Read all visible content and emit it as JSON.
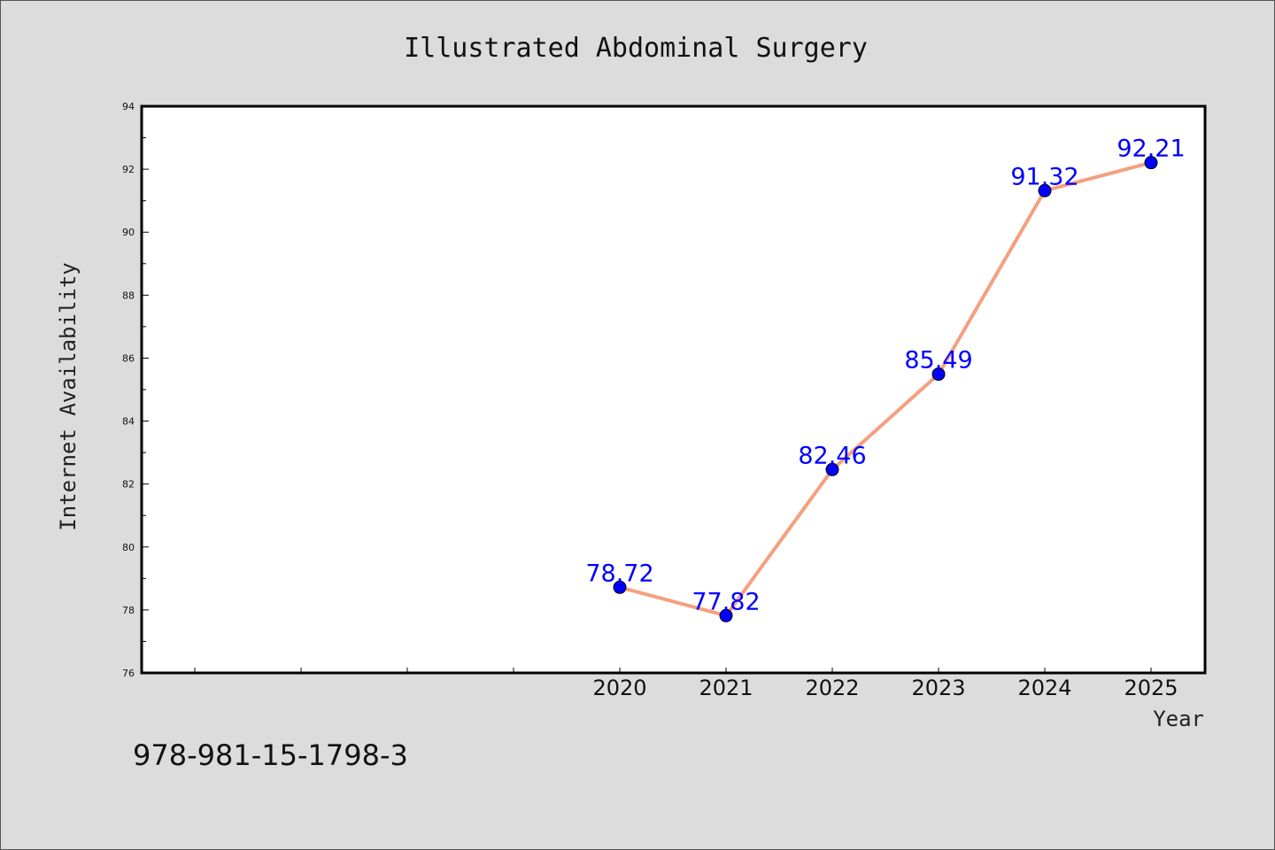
{
  "chart_data": {
    "type": "line",
    "title": "Illustrated Abdominal Surgery",
    "xlabel": "Year",
    "ylabel": "Internet Availability",
    "x": [
      "2020",
      "2021",
      "2022",
      "2023",
      "2024",
      "2025"
    ],
    "values": [
      78.72,
      77.82,
      82.46,
      85.49,
      91.32,
      92.21
    ],
    "data_labels": [
      "78.72",
      "77.82",
      "82.46",
      "85.49",
      "91.32",
      "92.21"
    ],
    "ylim": [
      76,
      94
    ],
    "yticks": [
      "76",
      "78",
      "80",
      "82",
      "84",
      "86",
      "88",
      "90",
      "92",
      "94"
    ],
    "grid": false,
    "legend": "none",
    "line_color": "#f4a07f",
    "marker_color": "#0000ff",
    "label_color": "#0000ff"
  },
  "footer": {
    "isbn": "978-981-15-1798-3"
  }
}
